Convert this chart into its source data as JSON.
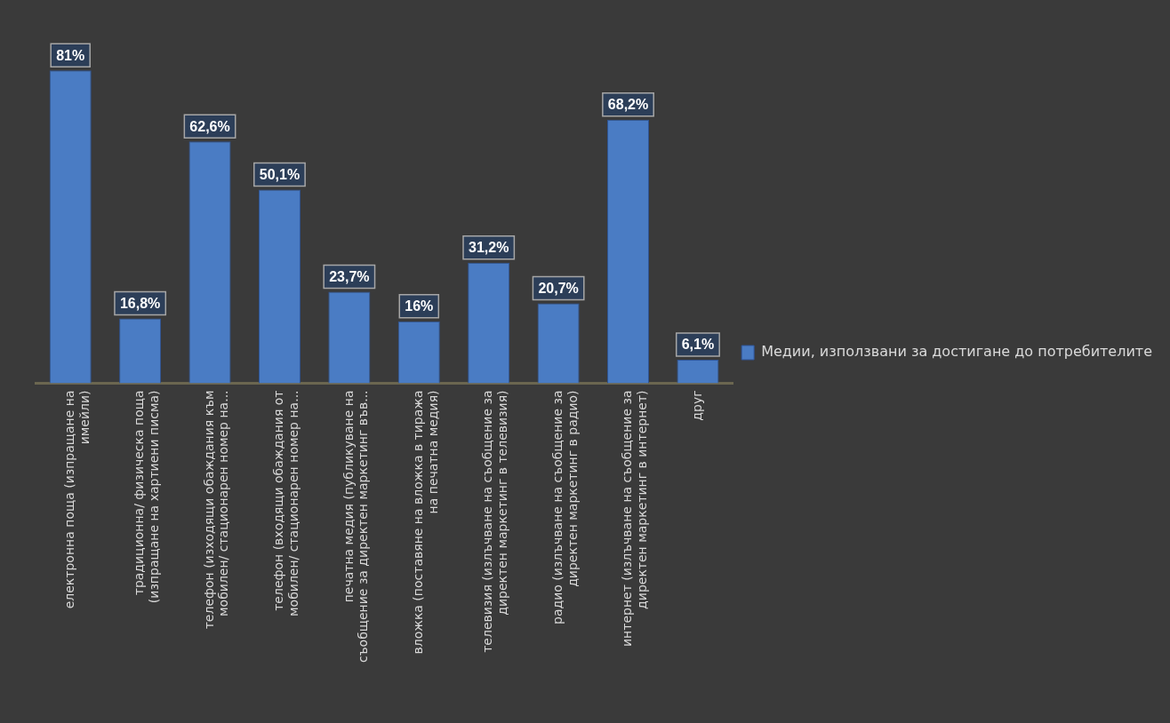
{
  "chart_data": {
    "type": "bar",
    "categories": [
      "електронна поща (изпращане на\nимейли)",
      "традиционна/ физическа поща\n(изпращане на хартиени писма)",
      "телефон (изходящи обаждания към\nмобилен/ стационарен номер на...",
      "телефон (входящи обаждания от\nмобилен/ стационарен номер на...",
      "печатна медия (публикуване на\nсъобщение за директен маркетинг във...",
      "вложка (поставяне на вложка в тиража\nна печатна медия)",
      "телевизия (излъчване на съобщение за\nдиректен маркетинг в телевизия)",
      "радио (излъчване на съобщение за\nдиректен маркетинг в радио)",
      "интернет (излъчване на съобщение за\nдиректен маркетинг в интернет)",
      "друг"
    ],
    "series": [
      {
        "name": "Медии, използвани за достигане до потребителите",
        "color": "#4a7cc4",
        "values": [
          81,
          16.8,
          62.6,
          50.1,
          23.7,
          16,
          31.2,
          20.7,
          68.2,
          6.1
        ],
        "value_labels": [
          "81%",
          "16,8%",
          "62,6%",
          "50,1%",
          "23,7%",
          "16%",
          "31,2%",
          "20,7%",
          "68,2%",
          "6,1%"
        ]
      }
    ],
    "legend": "right",
    "grid": false
  }
}
